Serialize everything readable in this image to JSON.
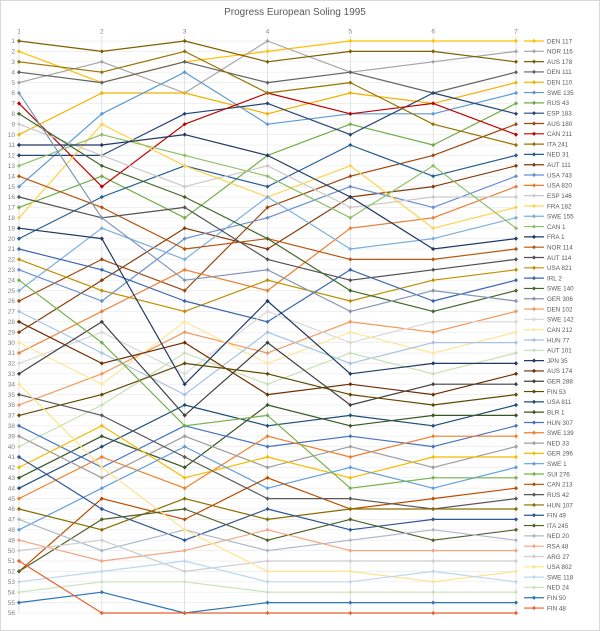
{
  "chart_data": {
    "type": "line",
    "title": "Progress European Soling 1995",
    "x": [
      1,
      2,
      3,
      4,
      5,
      6,
      7
    ],
    "x_tick_labels": [
      "1",
      "2",
      "3",
      "4",
      "5",
      "6",
      "7"
    ],
    "y_axis": {
      "min": 1,
      "max": 56,
      "inverted": true,
      "tick_step": 1
    },
    "x_axis_position": "top",
    "legend_position": "right",
    "grid": true,
    "ylabel": "",
    "xlabel": "",
    "series": [
      {
        "name": "DEN 117",
        "color": "#FFC000",
        "ranks": [
          2,
          5,
          3,
          2,
          1,
          1,
          1
        ]
      },
      {
        "name": "NOR 116",
        "color": "#A5A5A5",
        "ranks": [
          5,
          3,
          6,
          1,
          4,
          3,
          2
        ]
      },
      {
        "name": "AUS 178",
        "color": "#7F6000",
        "ranks": [
          1,
          2,
          1,
          3,
          2,
          2,
          3
        ]
      },
      {
        "name": "DEN 111",
        "color": "#636363",
        "ranks": [
          4,
          5,
          3,
          5,
          4,
          6,
          4
        ]
      },
      {
        "name": "DEN 110",
        "color": "#F2B200",
        "ranks": [
          10,
          6,
          6,
          8,
          6,
          7,
          5
        ]
      },
      {
        "name": "SWE 135",
        "color": "#5B9BD5",
        "ranks": [
          15,
          8,
          4,
          9,
          8,
          8,
          6
        ]
      },
      {
        "name": "RUS 43",
        "color": "#70AD47",
        "ranks": [
          17,
          14,
          18,
          12,
          9,
          11,
          7
        ]
      },
      {
        "name": "ESP 183",
        "color": "#264478",
        "ranks": [
          12,
          12,
          8,
          7,
          10,
          6,
          8
        ]
      },
      {
        "name": "AUS 180",
        "color": "#9E480E",
        "ranks": [
          26,
          22,
          25,
          17,
          14,
          12,
          9
        ]
      },
      {
        "name": "CAN 211",
        "color": "#C00000",
        "ranks": [
          7,
          15,
          9,
          6,
          8,
          7,
          10
        ]
      },
      {
        "name": "ITA 241",
        "color": "#997300",
        "ranks": [
          3,
          4,
          2,
          6,
          5,
          9,
          11
        ]
      },
      {
        "name": "NED 31",
        "color": "#255E91",
        "ranks": [
          20,
          16,
          13,
          15,
          11,
          14,
          12
        ]
      },
      {
        "name": "AUT 111",
        "color": "#843C0C",
        "ranks": [
          29,
          24,
          19,
          21,
          16,
          15,
          13
        ]
      },
      {
        "name": "USA 743",
        "color": "#698ED0",
        "ranks": [
          23,
          26,
          20,
          18,
          15,
          17,
          14
        ]
      },
      {
        "name": "USA 820",
        "color": "#ED7D31",
        "ranks": [
          31,
          27,
          23,
          25,
          19,
          18,
          15
        ]
      },
      {
        "name": "ESP 146",
        "color": "#C9C9C9",
        "ranks": [
          9,
          12,
          15,
          13,
          17,
          16,
          16
        ]
      },
      {
        "name": "FRA 182",
        "color": "#FFD24D",
        "ranks": [
          18,
          9,
          13,
          16,
          13,
          19,
          17
        ]
      },
      {
        "name": "SWE 155",
        "color": "#7CAFDD",
        "ranks": [
          25,
          19,
          22,
          16,
          21,
          20,
          18
        ]
      },
      {
        "name": "CAN 1",
        "color": "#8CC168",
        "ranks": [
          13,
          10,
          12,
          14,
          18,
          13,
          19
        ]
      },
      {
        "name": "FRA 1",
        "color": "#203864",
        "ranks": [
          11,
          11,
          10,
          12,
          16,
          21,
          20
        ]
      },
      {
        "name": "NOR 114",
        "color": "#B8560F",
        "ranks": [
          14,
          17,
          21,
          20,
          22,
          22,
          21
        ]
      },
      {
        "name": "AUT 114",
        "color": "#525252",
        "ranks": [
          16,
          18,
          17,
          22,
          24,
          23,
          22
        ]
      },
      {
        "name": "USA 821",
        "color": "#BF8F00",
        "ranks": [
          22,
          25,
          27,
          24,
          26,
          24,
          23
        ]
      },
      {
        "name": "IRL 2",
        "color": "#3A66B0",
        "ranks": [
          21,
          23,
          26,
          28,
          23,
          26,
          24
        ]
      },
      {
        "name": "SWE 140",
        "color": "#43682B",
        "ranks": [
          8,
          13,
          16,
          20,
          25,
          27,
          25
        ]
      },
      {
        "name": "GER 306",
        "color": "#8496B0",
        "ranks": [
          6,
          18,
          24,
          23,
          27,
          25,
          26
        ]
      },
      {
        "name": "DEN 102",
        "color": "#F1975A",
        "ranks": [
          36,
          33,
          29,
          31,
          28,
          29,
          27
        ]
      },
      {
        "name": "SWE 142",
        "color": "#D9D9D9",
        "ranks": [
          32,
          29,
          33,
          27,
          30,
          28,
          28
        ]
      },
      {
        "name": "CAN 212",
        "color": "#FFE699",
        "ranks": [
          30,
          34,
          28,
          32,
          29,
          31,
          29
        ]
      },
      {
        "name": "HUN 77",
        "color": "#A6C3E3",
        "ranks": [
          27,
          31,
          35,
          29,
          32,
          30,
          30
        ]
      },
      {
        "name": "AUT 101",
        "color": "#C5E0B4",
        "ranks": [
          40,
          36,
          31,
          34,
          31,
          33,
          31
        ]
      },
      {
        "name": "JPN 35",
        "color": "#1F3864",
        "ranks": [
          19,
          20,
          34,
          26,
          33,
          32,
          32
        ]
      },
      {
        "name": "AUS 174",
        "color": "#6E2C00",
        "ranks": [
          28,
          32,
          30,
          35,
          34,
          35,
          33
        ]
      },
      {
        "name": "GER 288",
        "color": "#404040",
        "ranks": [
          33,
          28,
          37,
          30,
          36,
          34,
          34
        ]
      },
      {
        "name": "FIN 53",
        "color": "#604A00",
        "ranks": [
          37,
          35,
          32,
          33,
          35,
          36,
          35
        ]
      },
      {
        "name": "USA 811",
        "color": "#1F4E79",
        "ranks": [
          44,
          40,
          36,
          38,
          37,
          38,
          36
        ]
      },
      {
        "name": "BLR 1",
        "color": "#385723",
        "ranks": [
          43,
          39,
          42,
          36,
          38,
          37,
          37
        ]
      },
      {
        "name": "HUN 307",
        "color": "#4472C4",
        "ranks": [
          38,
          42,
          38,
          40,
          39,
          40,
          38
        ]
      },
      {
        "name": "SWE 139",
        "color": "#F07F29",
        "ranks": [
          45,
          41,
          44,
          39,
          41,
          39,
          39
        ]
      },
      {
        "name": "NED 33",
        "color": "#9E9E9E",
        "ranks": [
          39,
          43,
          39,
          42,
          40,
          42,
          40
        ]
      },
      {
        "name": "GER 296",
        "color": "#F5BC00",
        "ranks": [
          42,
          38,
          43,
          41,
          43,
          41,
          41
        ]
      },
      {
        "name": "SWE 1",
        "color": "#61A0DB",
        "ranks": [
          48,
          44,
          40,
          44,
          42,
          44,
          42
        ]
      },
      {
        "name": "SUI 276",
        "color": "#76B14C",
        "ranks": [
          24,
          30,
          38,
          37,
          44,
          43,
          43
        ]
      },
      {
        "name": "CAN 213",
        "color": "#BC4B00",
        "ranks": [
          52,
          45,
          47,
          43,
          46,
          45,
          44
        ]
      },
      {
        "name": "RUS 42",
        "color": "#595959",
        "ranks": [
          35,
          37,
          41,
          45,
          45,
          46,
          45
        ]
      },
      {
        "name": "HUN 107",
        "color": "#8A6D00",
        "ranks": [
          46,
          48,
          45,
          47,
          46,
          46,
          46
        ]
      },
      {
        "name": "FIN 49",
        "color": "#2F5597",
        "ranks": [
          41,
          46,
          49,
          46,
          48,
          47,
          47
        ]
      },
      {
        "name": "ITA 245",
        "color": "#4F6228",
        "ranks": [
          52,
          47,
          46,
          49,
          47,
          49,
          48
        ]
      },
      {
        "name": "NED 20",
        "color": "#ADB9CA",
        "ranks": [
          47,
          50,
          48,
          50,
          49,
          48,
          49
        ]
      },
      {
        "name": "RSA 48",
        "color": "#F4A582",
        "ranks": [
          49,
          51,
          50,
          48,
          50,
          50,
          50
        ]
      },
      {
        "name": "ARG 27",
        "color": "#CFCDCD",
        "ranks": [
          50,
          49,
          52,
          51,
          51,
          51,
          51
        ]
      },
      {
        "name": "USA 802",
        "color": "#FFE28A",
        "ranks": [
          34,
          42,
          48,
          52,
          52,
          53,
          52
        ]
      },
      {
        "name": "SWE 118",
        "color": "#BDD7EE",
        "ranks": [
          53,
          52,
          51,
          53,
          53,
          52,
          53
        ]
      },
      {
        "name": "NED 24",
        "color": "#C9E2B8",
        "ranks": [
          54,
          53,
          53,
          54,
          54,
          54,
          54
        ]
      },
      {
        "name": "FIN 50",
        "color": "#2E75B6",
        "ranks": [
          55,
          54,
          56,
          55,
          55,
          55,
          55
        ]
      },
      {
        "name": "FIN 48",
        "color": "#E8622D",
        "ranks": [
          51,
          56,
          56,
          56,
          56,
          56,
          56
        ]
      }
    ]
  }
}
